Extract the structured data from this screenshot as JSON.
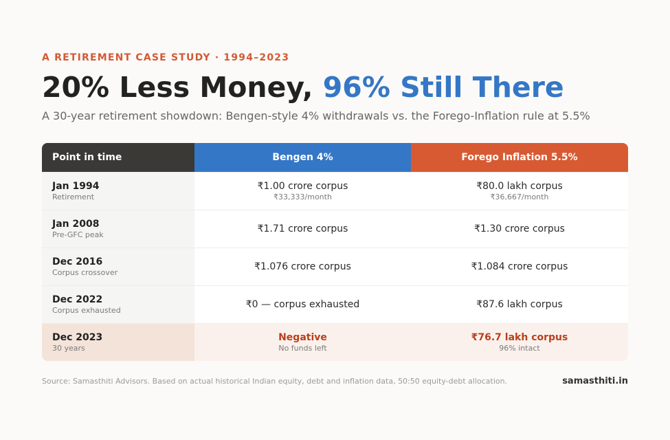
{
  "header": {
    "eyebrow": "A RETIREMENT CASE STUDY · 1994–2023",
    "title_part1": "20% Less Money, ",
    "title_part2": "96% Still There",
    "subtitle": "A 30-year retirement showdown: Bengen-style 4% withdrawals vs. the Forego-Inflation rule at 5.5%"
  },
  "table": {
    "columns": [
      "Point in time",
      "Bengen 4%",
      "Forego Inflation 5.5%"
    ],
    "rows": [
      {
        "label": "Jan 1994",
        "sublabel": "Retirement",
        "bengen": "₹1.00 crore corpus",
        "bengen_sub": "₹33,333/month",
        "forego": "₹80.0 lakh corpus",
        "forego_sub": "₹36,667/month"
      },
      {
        "label": "Jan 2008",
        "sublabel": "Pre-GFC peak",
        "bengen": "₹1.71 crore corpus",
        "bengen_sub": "",
        "forego": "₹1.30 crore corpus",
        "forego_sub": ""
      },
      {
        "label": "Dec 2016",
        "sublabel": "Corpus crossover",
        "bengen": "₹1.076 crore corpus",
        "bengen_sub": "",
        "forego": "₹1.084 crore corpus",
        "forego_sub": ""
      },
      {
        "label": "Dec 2022",
        "sublabel": "Corpus exhausted",
        "bengen": "₹0 — corpus exhausted",
        "bengen_sub": "",
        "forego": "₹87.6 lakh corpus",
        "forego_sub": ""
      },
      {
        "label": "Dec 2023",
        "sublabel": "30 years",
        "bengen": "Negative",
        "bengen_sub": "No funds left",
        "forego": "₹76.7 lakh corpus",
        "forego_sub": "96% intact"
      }
    ]
  },
  "footer": {
    "source": "Source: Samasthiti Advisors. Based on actual historical Indian equity, debt and inflation data, 50:50 equity-debt allocation.",
    "brand": "samasthiti.in"
  },
  "colors": {
    "accent_orange": "#d85a32",
    "accent_blue": "#3477c6",
    "header_dark": "#3a3936"
  }
}
